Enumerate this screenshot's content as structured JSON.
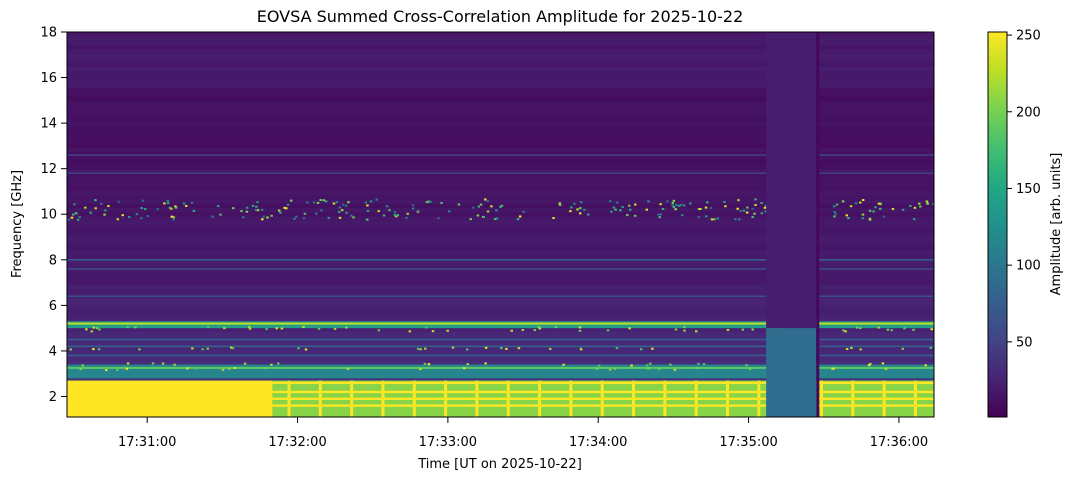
{
  "chart_data": {
    "type": "heatmap",
    "title": "EOVSA Summed Cross-Correlation Amplitude for 2025-10-22",
    "xlabel": "Time [UT on 2025-10-22]",
    "ylabel": "Frequency [GHz]",
    "colorbar_label": "Amplitude [arb. units]",
    "colormap": "viridis",
    "x_range": [
      "17:30:28",
      "17:36:14"
    ],
    "x_ticks": [
      "17:31:00",
      "17:32:00",
      "17:33:00",
      "17:34:00",
      "17:35:00",
      "17:36:00"
    ],
    "y_range": [
      1.1,
      18
    ],
    "y_ticks": [
      "2",
      "4",
      "6",
      "8",
      "10",
      "12",
      "14",
      "16",
      "18"
    ],
    "color_range": [
      1,
      252
    ],
    "colorbar_ticks": [
      "50",
      "100",
      "150",
      "200",
      "250"
    ],
    "features": {
      "low_band_saturated_below_GHz": 2.7,
      "strong_band_GHz": [
        5.0,
        5.3
      ],
      "sporadic_rfi_band_GHz": [
        9.8,
        10.7
      ],
      "data_gap_time": [
        "17:35:07",
        "17:35:27"
      ]
    }
  }
}
